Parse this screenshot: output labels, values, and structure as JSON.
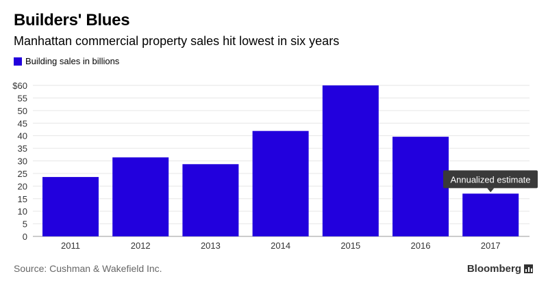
{
  "header": {
    "title": "Builders' Blues",
    "subtitle": "Manhattan commercial property sales hit lowest in six years"
  },
  "footer": {
    "source": "Source: Cushman & Wakefield Inc.",
    "brand": "Bloomberg",
    "brand_icon": "bar-chart-icon"
  },
  "colors": {
    "bar": "#2200dd",
    "grid": "#e6e6e6",
    "annotation_bg": "#3a3a3a",
    "annotation_text": "#ffffff",
    "axis_text": "#333333"
  },
  "chart_data": {
    "type": "bar",
    "categories": [
      "2011",
      "2012",
      "2013",
      "2014",
      "2015",
      "2016",
      "2017"
    ],
    "series": [
      {
        "name": "Building sales in billions",
        "values": [
          23.6,
          31.4,
          28.7,
          41.9,
          60.0,
          39.6,
          17.0
        ]
      }
    ],
    "ylim": [
      0,
      60
    ],
    "yticks": [
      0,
      5,
      10,
      15,
      20,
      25,
      30,
      35,
      40,
      45,
      50,
      55,
      60
    ],
    "ytick_labels": [
      "0",
      "5",
      "10",
      "15",
      "20",
      "25",
      "30",
      "35",
      "40",
      "45",
      "50",
      "55",
      "$60"
    ],
    "grid": true,
    "legend_position": "top-left",
    "annotations": [
      {
        "category": "2017",
        "text": "Annualized estimate"
      }
    ]
  }
}
